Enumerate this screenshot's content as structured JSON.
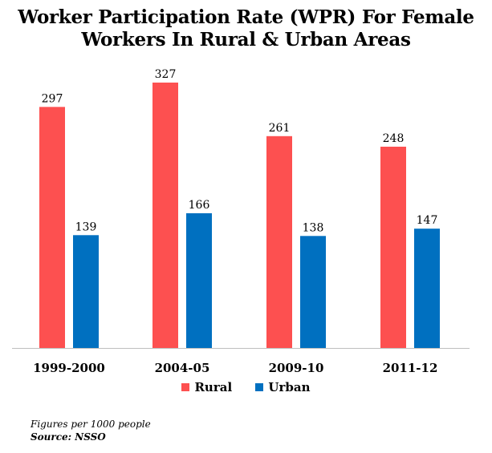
{
  "chart_data": {
    "type": "bar",
    "title_line1": "Worker Participation Rate (WPR) For Female",
    "title_line2": "Workers In Rural & Urban Areas",
    "categories": [
      "1999-2000",
      "2004-05",
      "2009-10",
      "2011-12"
    ],
    "series": [
      {
        "name": "Rural",
        "values": [
          297,
          327,
          261,
          248
        ],
        "color": "#fd5050"
      },
      {
        "name": "Urban",
        "values": [
          139,
          166,
          138,
          147
        ],
        "color": "#0070c0"
      }
    ],
    "ylim": [
      0,
      327
    ],
    "grid": false,
    "legend_position": "bottom"
  },
  "footnote": "Figures per 1000 people",
  "source": "Source: NSSO"
}
